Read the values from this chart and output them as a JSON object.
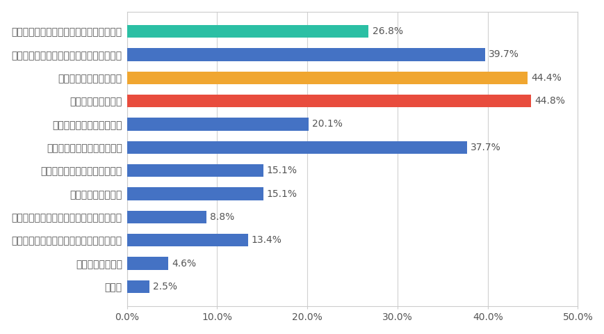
{
  "categories": [
    "その他",
    "核の脅威が減った",
    "自然保護・生物多様性の保全が促進された",
    "経済的に豊かになった／雇用が促進された",
    "貧困や飢餓が減った",
    "自然エネルギーの開発が進んだ",
    "国際交流・国際協力が進んだ",
    "人権の抑圧や差別が減った",
    "戦争や紛争が減った",
    "医療や福祉が促進された",
    "教育の機会が増えた／教育の質が高まった",
    "科学技術の進歩により生活の質が向上した"
  ],
  "values": [
    2.5,
    4.6,
    13.4,
    8.8,
    15.1,
    15.1,
    37.7,
    20.1,
    44.8,
    44.4,
    39.7,
    26.8
  ],
  "bar_colors": [
    "#4472C4",
    "#4472C4",
    "#4472C4",
    "#4472C4",
    "#4472C4",
    "#4472C4",
    "#4472C4",
    "#4472C4",
    "#E84C3D",
    "#F0A630",
    "#4472C4",
    "#2BBFA4"
  ],
  "xlim": [
    0,
    50
  ],
  "xtick_labels": [
    "0.0%",
    "10.0%",
    "20.0%",
    "30.0%",
    "40.0%",
    "50.0%"
  ],
  "xtick_values": [
    0,
    10,
    20,
    30,
    40,
    50
  ],
  "background_color": "#ffffff",
  "bar_height": 0.55,
  "label_fontsize": 10,
  "tick_fontsize": 10,
  "text_color": "#555555",
  "value_label_color": "#555555"
}
